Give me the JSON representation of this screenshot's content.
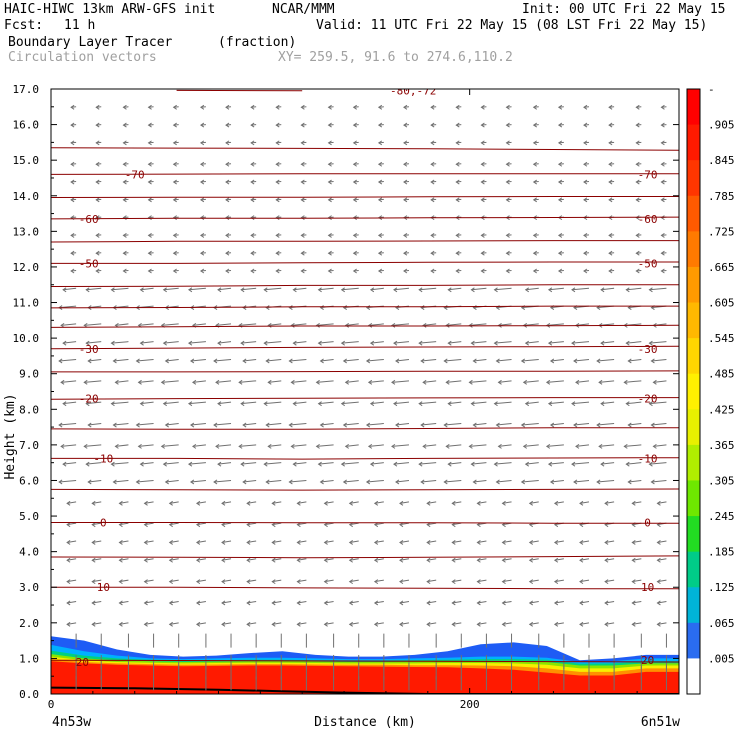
{
  "header": {
    "model_title": "HAIC-HIWC 13km ARW-GFS init",
    "org": "NCAR/MMM",
    "init": "Init: 00 UTC Fri 22 May 15",
    "fcst_label": "Fcst:",
    "fcst_value": "11 h",
    "valid": "Valid: 11 UTC Fri 22 May 15 (08 LST Fri 22 May 15)",
    "field_name": "Boundary Layer Tracer",
    "field_units": "(fraction)",
    "overlay_name": "Circulation vectors",
    "xy_range": "XY= 259.5, 91.6 to 274.6,110.2"
  },
  "colors": {
    "contour": "#8b0000",
    "vector": "#707070",
    "terrain": "#000000"
  },
  "chart_data": {
    "type": "heatmap",
    "xlabel": "Distance (km)",
    "ylabel": "Height (km)",
    "xlim": [
      0,
      300
    ],
    "ylim": [
      0.0,
      17.0
    ],
    "x_ticks": [
      0,
      200
    ],
    "x_tick_labels": [
      "0",
      "200"
    ],
    "x_start_label": "4n53w",
    "x_end_label": "6n51w",
    "y_ticks": [
      0.0,
      1.0,
      2.0,
      3.0,
      4.0,
      5.0,
      6.0,
      7.0,
      8.0,
      9.0,
      10.0,
      11.0,
      12.0,
      13.0,
      14.0,
      15.0,
      16.0,
      17.0
    ],
    "y_tick_labels": [
      "0.0",
      "1.0",
      "2.0",
      "3.0",
      "4.0",
      "5.0",
      "6.0",
      "7.0",
      "8.0",
      "9.0",
      "10.0",
      "11.0",
      "12.0",
      "13.0",
      "14.0",
      "15.0",
      "16.0",
      "17.0"
    ],
    "colorbar_labels": [
      "-",
      ".905",
      ".845",
      ".785",
      ".725",
      ".665",
      ".605",
      ".545",
      ".485",
      ".425",
      ".365",
      ".305",
      ".245",
      ".185",
      ".125",
      ".065",
      ".005"
    ],
    "colorbar_colors": [
      "#ff0000",
      "#ff1a00",
      "#ff3600",
      "#ff5a00",
      "#ff7a00",
      "#ff9a00",
      "#ffb800",
      "#ffd600",
      "#fff000",
      "#e8f000",
      "#b0ee00",
      "#6ee800",
      "#22dd22",
      "#00cc88",
      "#00b4d8",
      "#2a6cf0",
      "#ffffff"
    ],
    "tracer_fill": [
      {
        "level": 0.065,
        "color": "#1e5cf5",
        "top": [
          1.62,
          1.5,
          1.25,
          1.1,
          1.05,
          1.08,
          1.15,
          1.2,
          1.1,
          1.05,
          1.05,
          1.1,
          1.2,
          1.4,
          1.45,
          1.35,
          0.95,
          1.0,
          1.1,
          1.1
        ]
      },
      {
        "level": 0.125,
        "color": "#00b0ff",
        "top": [
          1.38,
          1.2,
          1.08,
          1.0,
          0.98,
          1.0,
          1.02,
          1.02,
          1.0,
          0.98,
          0.98,
          1.0,
          1.02,
          1.05,
          1.05,
          1.02,
          0.9,
          0.92,
          1.0,
          1.0
        ]
      },
      {
        "level": 0.245,
        "color": "#00d080",
        "top": [
          1.22,
          1.08,
          1.0,
          0.96,
          0.94,
          0.95,
          0.96,
          0.96,
          0.95,
          0.94,
          0.94,
          0.95,
          0.96,
          0.98,
          0.98,
          0.96,
          0.85,
          0.86,
          0.92,
          0.92
        ]
      },
      {
        "level": 0.365,
        "color": "#88e600",
        "top": [
          1.12,
          1.0,
          0.95,
          0.92,
          0.9,
          0.91,
          0.92,
          0.92,
          0.91,
          0.9,
          0.9,
          0.91,
          0.92,
          0.93,
          0.93,
          0.9,
          0.8,
          0.8,
          0.86,
          0.86
        ]
      },
      {
        "level": 0.485,
        "color": "#f8ee00",
        "top": [
          1.05,
          0.95,
          0.9,
          0.88,
          0.86,
          0.87,
          0.88,
          0.88,
          0.87,
          0.86,
          0.86,
          0.86,
          0.87,
          0.87,
          0.86,
          0.82,
          0.72,
          0.72,
          0.8,
          0.8
        ]
      },
      {
        "level": 0.665,
        "color": "#ff9000",
        "top": [
          0.98,
          0.9,
          0.86,
          0.84,
          0.82,
          0.83,
          0.84,
          0.84,
          0.83,
          0.82,
          0.82,
          0.81,
          0.81,
          0.8,
          0.78,
          0.72,
          0.62,
          0.62,
          0.72,
          0.72
        ]
      },
      {
        "level": 0.905,
        "color": "#ff1a00",
        "top": [
          0.92,
          0.86,
          0.82,
          0.8,
          0.78,
          0.79,
          0.8,
          0.8,
          0.79,
          0.78,
          0.77,
          0.76,
          0.75,
          0.72,
          0.68,
          0.6,
          0.52,
          0.52,
          0.62,
          0.62
        ]
      }
    ],
    "terrain": [
      [
        0,
        0.18
      ],
      [
        40,
        0.16
      ],
      [
        80,
        0.12
      ],
      [
        110,
        0.08
      ],
      [
        140,
        0.04
      ],
      [
        180,
        0.0
      ],
      [
        300,
        0.0
      ]
    ],
    "temperature_contours": [
      {
        "value": "20",
        "heights": [
          0.95,
          0.94,
          0.93,
          0.92,
          0.91,
          0.9
        ],
        "labels": [
          [
            15,
            0.9
          ],
          [
            285,
            0.95
          ]
        ]
      },
      {
        "value": "10",
        "heights": [
          3.0,
          3.0,
          2.98,
          2.97,
          2.96,
          2.96
        ],
        "labels": [
          [
            25,
            3.0
          ],
          [
            285,
            3.0
          ]
        ]
      },
      {
        "value": "",
        "heights": [
          3.85,
          3.84,
          3.83,
          3.84,
          3.86,
          3.88
        ],
        "labels": []
      },
      {
        "value": "0",
        "heights": [
          4.82,
          4.82,
          4.81,
          4.81,
          4.8,
          4.8
        ],
        "labels": [
          [
            25,
            4.82
          ],
          [
            285,
            4.82
          ]
        ]
      },
      {
        "value": "",
        "heights": [
          5.75,
          5.74,
          5.73,
          5.74,
          5.75,
          5.76
        ],
        "labels": []
      },
      {
        "value": "-10",
        "heights": [
          6.62,
          6.62,
          6.6,
          6.62,
          6.63,
          6.64
        ],
        "labels": [
          [
            25,
            6.62
          ],
          [
            285,
            6.62
          ]
        ]
      },
      {
        "value": "",
        "heights": [
          7.45,
          7.44,
          7.44,
          7.46,
          7.48,
          7.48
        ],
        "labels": []
      },
      {
        "value": "-20",
        "heights": [
          8.28,
          8.3,
          8.31,
          8.32,
          8.33,
          8.33
        ],
        "labels": [
          [
            18,
            8.3
          ],
          [
            285,
            8.3
          ]
        ]
      },
      {
        "value": "",
        "heights": [
          9.05,
          9.05,
          9.06,
          9.07,
          9.07,
          9.08
        ],
        "labels": []
      },
      {
        "value": "-30",
        "heights": [
          9.7,
          9.72,
          9.74,
          9.75,
          9.76,
          9.77
        ],
        "labels": [
          [
            18,
            9.7
          ],
          [
            285,
            9.7
          ]
        ]
      },
      {
        "value": "",
        "heights": [
          10.3,
          10.32,
          10.34,
          10.34,
          10.35,
          10.36
        ],
        "labels": []
      },
      {
        "value": "",
        "heights": [
          10.85,
          10.86,
          10.88,
          10.88,
          10.9,
          10.9
        ],
        "labels": []
      },
      {
        "value": "",
        "heights": [
          11.45,
          11.46,
          11.48,
          11.48,
          11.5,
          11.5
        ],
        "labels": []
      },
      {
        "value": "-50",
        "heights": [
          12.1,
          12.1,
          12.12,
          12.13,
          12.14,
          12.14
        ],
        "labels": [
          [
            18,
            12.1
          ],
          [
            285,
            12.1
          ]
        ]
      },
      {
        "value": "",
        "heights": [
          12.7,
          12.72,
          12.72,
          12.73,
          12.74,
          12.74
        ],
        "labels": []
      },
      {
        "value": "-60",
        "heights": [
          13.35,
          13.37,
          13.37,
          13.38,
          13.39,
          13.4
        ],
        "labels": [
          [
            18,
            13.35
          ],
          [
            285,
            13.35
          ]
        ]
      },
      {
        "value": "",
        "heights": [
          13.95,
          13.96,
          13.96,
          13.97,
          13.98,
          13.98
        ],
        "labels": []
      },
      {
        "value": "-70",
        "heights": [
          14.6,
          14.61,
          14.62,
          14.62,
          14.62,
          14.62
        ],
        "labels": [
          [
            40,
            14.6
          ],
          [
            285,
            14.6
          ]
        ]
      },
      {
        "value": "",
        "heights": [
          15.35,
          15.34,
          15.33,
          15.32,
          15.3,
          15.28
        ],
        "labels": []
      },
      {
        "value": "-80,-72",
        "heights": [
          null,
          16.96,
          16.95,
          null,
          null,
          null
        ],
        "labels": [
          [
            173,
            16.96
          ]
        ]
      }
    ],
    "vector_columns_km": [
      12,
      24,
      37,
      49,
      61,
      74,
      86,
      98,
      110,
      122,
      135,
      147,
      159,
      171,
      184,
      196,
      208,
      220,
      233,
      245,
      257,
      269,
      282,
      294
    ],
    "vector_levels_km": [
      0.3,
      0.6,
      0.9,
      1.5,
      2.0,
      2.6,
      3.2,
      3.8,
      4.3,
      4.8,
      5.4,
      6.0,
      6.5,
      7.0,
      7.6,
      8.2,
      8.8,
      9.4,
      9.9,
      10.4,
      10.9,
      11.4,
      11.9,
      12.4,
      12.9,
      13.4,
      13.9,
      14.4,
      14.9,
      15.5,
      16.0,
      16.5
    ]
  }
}
